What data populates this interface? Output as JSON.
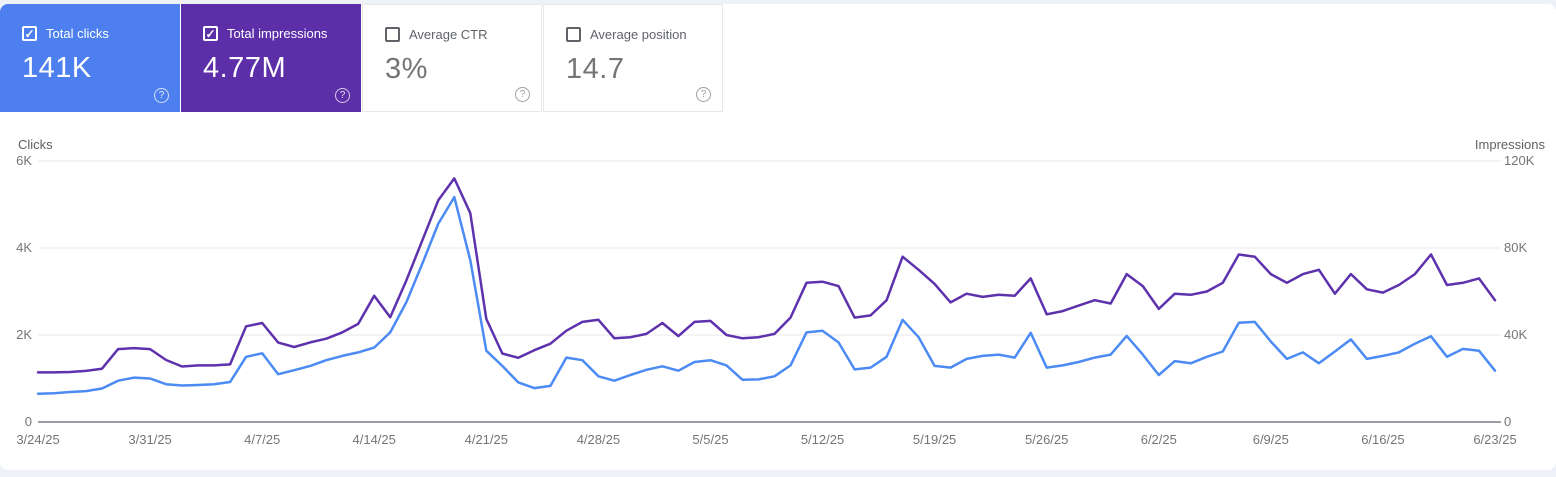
{
  "icons": {
    "checkmark": "✓",
    "help": "?"
  },
  "colors": {
    "page_background": "#eef1f8",
    "panel_background": "#ffffff",
    "clicks_card": "#4d80ee",
    "impressions_card": "#5c2ea8",
    "clicks_line": "#4c8bf4",
    "impressions_line": "#5e31ad",
    "gridline": "#e9e9e9",
    "baseline": "#9aa0a6"
  },
  "cards": [
    {
      "label": "Total clicks",
      "value": "141K",
      "selected": true,
      "color": "#4d80ee"
    },
    {
      "label": "Total impressions",
      "value": "4.77M",
      "selected": true,
      "color": "#5c2ea8"
    },
    {
      "label": "Average CTR",
      "value": "3%",
      "selected": false,
      "color": null
    },
    {
      "label": "Average position",
      "value": "14.7",
      "selected": false,
      "color": null
    }
  ],
  "chart_data": {
    "type": "line",
    "title": "",
    "grid": "horizontal",
    "legend_position": "none",
    "left_axis": {
      "label": "Clicks",
      "ticks": [
        "0",
        "2K",
        "4K",
        "6K"
      ],
      "max": 6000,
      "min": 0
    },
    "right_axis": {
      "label": "Impressions",
      "ticks": [
        "0",
        "40K",
        "80K",
        "120K"
      ],
      "max": 120000,
      "min": 0
    },
    "x_tick_labels": [
      "3/24/25",
      "3/31/25",
      "4/7/25",
      "4/14/25",
      "4/21/25",
      "4/28/25",
      "5/5/25",
      "5/12/25",
      "5/19/25",
      "5/26/25",
      "6/2/25",
      "6/9/25",
      "6/16/25",
      "6/23/25"
    ],
    "x": [
      "3/24/25",
      "3/25/25",
      "3/26/25",
      "3/27/25",
      "3/28/25",
      "3/29/25",
      "3/30/25",
      "3/31/25",
      "4/1/25",
      "4/2/25",
      "4/3/25",
      "4/4/25",
      "4/5/25",
      "4/6/25",
      "4/7/25",
      "4/8/25",
      "4/9/25",
      "4/10/25",
      "4/11/25",
      "4/12/25",
      "4/13/25",
      "4/14/25",
      "4/15/25",
      "4/16/25",
      "4/17/25",
      "4/18/25",
      "4/19/25",
      "4/20/25",
      "4/21/25",
      "4/22/25",
      "4/23/25",
      "4/24/25",
      "4/25/25",
      "4/26/25",
      "4/27/25",
      "4/28/25",
      "4/29/25",
      "4/30/25",
      "5/1/25",
      "5/2/25",
      "5/3/25",
      "5/4/25",
      "5/5/25",
      "5/6/25",
      "5/7/25",
      "5/8/25",
      "5/9/25",
      "5/10/25",
      "5/11/25",
      "5/12/25",
      "5/13/25",
      "5/14/25",
      "5/15/25",
      "5/16/25",
      "5/17/25",
      "5/18/25",
      "5/19/25",
      "5/20/25",
      "5/21/25",
      "5/22/25",
      "5/23/25",
      "5/24/25",
      "5/25/25",
      "5/26/25",
      "5/27/25",
      "5/28/25",
      "5/29/25",
      "5/30/25",
      "5/31/25",
      "6/1/25",
      "6/2/25",
      "6/3/25",
      "6/4/25",
      "6/5/25",
      "6/6/25",
      "6/7/25",
      "6/8/25",
      "6/9/25",
      "6/10/25",
      "6/11/25",
      "6/12/25",
      "6/13/25",
      "6/14/25",
      "6/15/25",
      "6/16/25",
      "6/17/25",
      "6/18/25",
      "6/19/25",
      "6/20/25",
      "6/21/25",
      "6/22/25",
      "6/23/25"
    ],
    "series": [
      {
        "name": "Clicks",
        "axis": "left",
        "color": "#4c8bf4",
        "values": [
          650,
          660,
          690,
          710,
          770,
          950,
          1020,
          1000,
          870,
          840,
          850,
          870,
          920,
          1500,
          1580,
          1100,
          1190,
          1290,
          1420,
          1520,
          1600,
          1710,
          2060,
          2750,
          3640,
          4560,
          5170,
          3720,
          1640,
          1290,
          910,
          780,
          830,
          1480,
          1420,
          1050,
          950,
          1080,
          1200,
          1280,
          1180,
          1380,
          1420,
          1300,
          970,
          980,
          1050,
          1300,
          2060,
          2100,
          1830,
          1210,
          1250,
          1500,
          2350,
          1950,
          1290,
          1250,
          1450,
          1520,
          1550,
          1480,
          2050,
          1250,
          1300,
          1380,
          1480,
          1550,
          1980,
          1550,
          1080,
          1400,
          1350,
          1500,
          1620,
          2280,
          2300,
          1850,
          1450,
          1600,
          1350,
          1620,
          1900,
          1450,
          1520,
          1600,
          1800,
          1970,
          1500,
          1680,
          1640,
          1180
        ]
      },
      {
        "name": "Impressions",
        "axis": "right",
        "color": "#5e31ad",
        "values": [
          22800,
          22800,
          23000,
          23500,
          24500,
          33500,
          34000,
          33500,
          28500,
          25500,
          26000,
          26000,
          26500,
          44000,
          45500,
          36500,
          34500,
          36600,
          38300,
          41200,
          45100,
          58000,
          48200,
          65000,
          83500,
          102000,
          112000,
          96000,
          47400,
          31500,
          29500,
          33000,
          36000,
          42000,
          46000,
          47000,
          38500,
          39000,
          40500,
          45500,
          39500,
          46000,
          46500,
          40000,
          38500,
          39000,
          40500,
          48000,
          64000,
          64500,
          62500,
          48000,
          49000,
          56000,
          76000,
          70000,
          63500,
          55000,
          59000,
          57500,
          58500,
          58000,
          66000,
          49500,
          51000,
          53500,
          56000,
          54500,
          68000,
          62500,
          52000,
          59000,
          58500,
          60000,
          64000,
          77000,
          76000,
          68000,
          64000,
          68000,
          70000,
          59000,
          68000,
          61000,
          59500,
          63000,
          68000,
          77000,
          63000,
          64000,
          66000,
          56000
        ]
      }
    ]
  }
}
